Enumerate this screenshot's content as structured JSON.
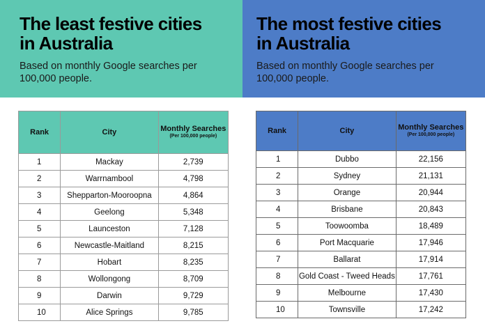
{
  "least": {
    "title": "The least festive cities in Australia",
    "subtitle": "Based on monthly Google searches per 100,000 people.",
    "columns": {
      "rank": "Rank",
      "city": "City",
      "searches": "Monthly Searches",
      "searches_note": "(Per 100,000 people)"
    },
    "rows": [
      {
        "rank": "1",
        "city": "Mackay",
        "value": "2,739"
      },
      {
        "rank": "2",
        "city": "Warrnambool",
        "value": "4,798"
      },
      {
        "rank": "3",
        "city": "Shepparton-Mooroopna",
        "value": "4,864"
      },
      {
        "rank": "4",
        "city": "Geelong",
        "value": "5,348"
      },
      {
        "rank": "5",
        "city": "Launceston",
        "value": "7,128"
      },
      {
        "rank": "6",
        "city": "Newcastle-Maitland",
        "value": "8,215"
      },
      {
        "rank": "7",
        "city": "Hobart",
        "value": "8,235"
      },
      {
        "rank": "8",
        "city": "Wollongong",
        "value": "8,709"
      },
      {
        "rank": "9",
        "city": "Darwin",
        "value": "9,729"
      },
      {
        "rank": "10",
        "city": "Alice Springs",
        "value": "9,785"
      }
    ]
  },
  "most": {
    "title": "The most festive cities in Australia",
    "subtitle": "Based on monthly Google searches per 100,000 people.",
    "columns": {
      "rank": "Rank",
      "city": "City",
      "searches": "Monthly Searches",
      "searches_note": "(Per 100,000 people)"
    },
    "rows": [
      {
        "rank": "1",
        "city": "Dubbo",
        "value": "22,156"
      },
      {
        "rank": "2",
        "city": "Sydney",
        "value": "21,131"
      },
      {
        "rank": "3",
        "city": "Orange",
        "value": "20,944"
      },
      {
        "rank": "4",
        "city": "Brisbane",
        "value": "20,843"
      },
      {
        "rank": "5",
        "city": "Toowoomba",
        "value": "18,489"
      },
      {
        "rank": "6",
        "city": "Port Macquarie",
        "value": "17,946"
      },
      {
        "rank": "7",
        "city": "Ballarat",
        "value": "17,914"
      },
      {
        "rank": "8",
        "city": "Gold Coast - Tweed Heads",
        "value": "17,761"
      },
      {
        "rank": "9",
        "city": "Melbourne",
        "value": "17,430"
      },
      {
        "rank": "10",
        "city": "Townsville",
        "value": "17,242"
      }
    ]
  },
  "colors": {
    "least_accent": "#5ec8b2",
    "most_accent": "#4d7cc7"
  }
}
